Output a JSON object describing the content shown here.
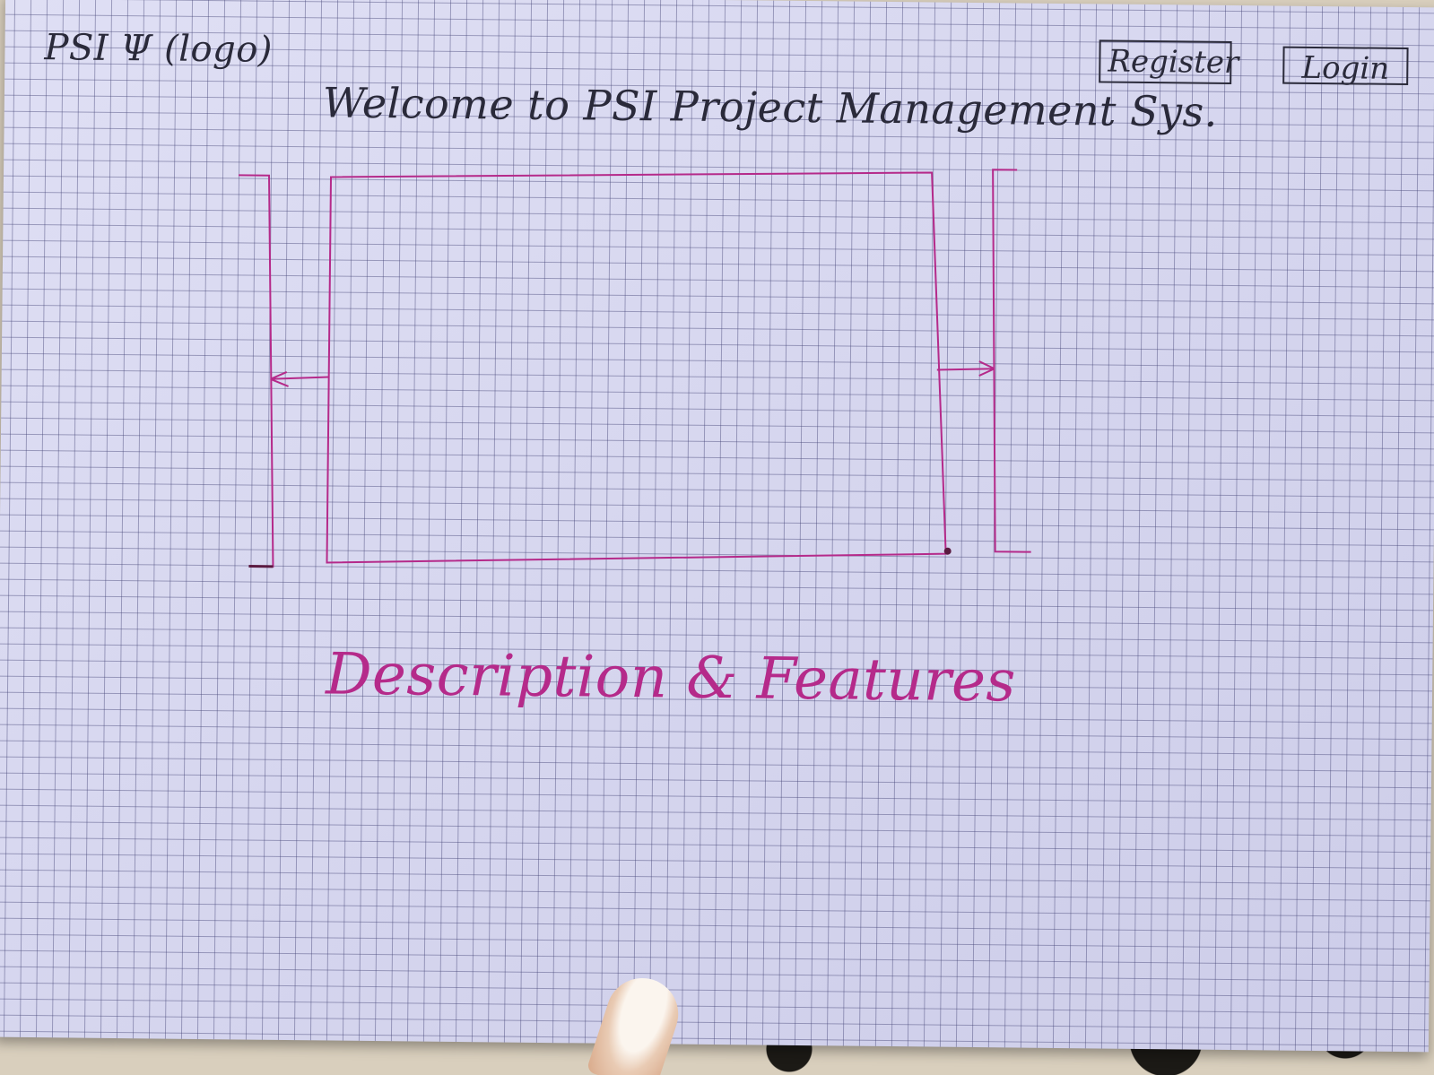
{
  "header": {
    "logo_text": "PSI Ψ (logo)",
    "welcome_title": "Welcome to PSI Project Management Sys."
  },
  "nav": {
    "register_label": "Register",
    "login_label": "Login"
  },
  "main": {
    "description_heading": "Description & Features"
  },
  "icons": {
    "prev": "arrow-left-icon",
    "next": "arrow-right-icon"
  },
  "colors": {
    "paper": "#d8d8f2",
    "grid": "#46467a",
    "pencil": "#2a2a3a",
    "pink_ink": "#b52a8a"
  }
}
